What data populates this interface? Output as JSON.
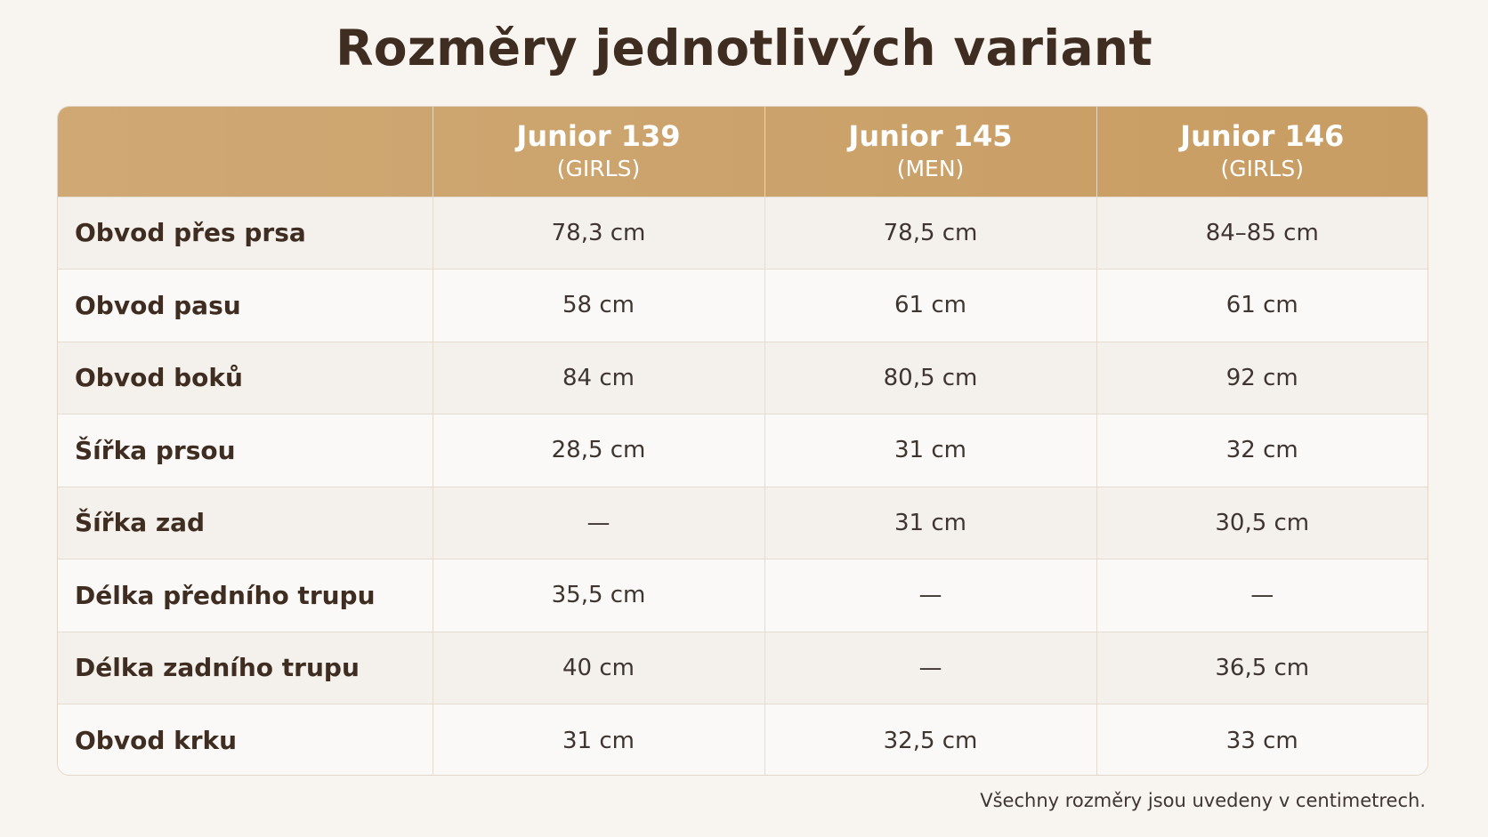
{
  "title": "Rozměry jednotlivých variant",
  "columns": [
    {
      "name": "",
      "sub": ""
    },
    {
      "name": "Junior 139",
      "sub": "(GIRLS)"
    },
    {
      "name": "Junior 145",
      "sub": "(MEN)"
    },
    {
      "name": "Junior 146",
      "sub": "(GIRLS)"
    }
  ],
  "rows": [
    {
      "label": "Obvod přes prsa",
      "values": [
        "78,3 cm",
        "78,5 cm",
        "84–85 cm"
      ]
    },
    {
      "label": "Obvod pasu",
      "values": [
        "58 cm",
        "61 cm",
        "61 cm"
      ]
    },
    {
      "label": "Obvod boků",
      "values": [
        "84 cm",
        "80,5 cm",
        "92 cm"
      ]
    },
    {
      "label": "Šířka prsou",
      "values": [
        "28,5 cm",
        "31 cm",
        "32 cm"
      ]
    },
    {
      "label": "Šířka zad",
      "values": [
        "—",
        "31 cm",
        "30,5 cm"
      ]
    },
    {
      "label": "Délka předního trupu",
      "values": [
        "35,5 cm",
        "—",
        "—"
      ]
    },
    {
      "label": "Délka zadního trupu",
      "values": [
        "40 cm",
        "—",
        "36,5 cm"
      ]
    },
    {
      "label": "Obvod krku",
      "values": [
        "31 cm",
        "32,5 cm",
        "33 cm"
      ]
    }
  ],
  "footnote": "Všechny rozměry jsou uvedeny v centimetrech.",
  "colors": {
    "header_background": "#c89d63",
    "header_text": "#ffffff",
    "title_text": "#3e2d20",
    "page_background": "#f8f5f1"
  }
}
